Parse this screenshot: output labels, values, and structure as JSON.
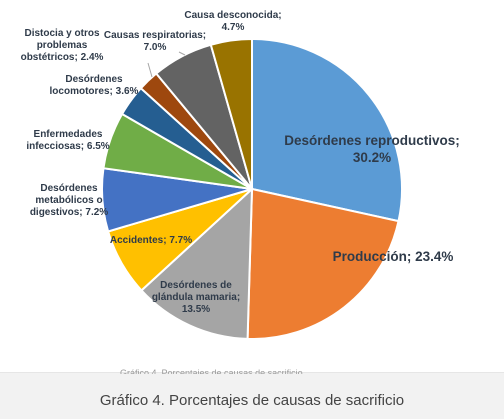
{
  "chart_data": {
    "type": "pie",
    "categories": [
      "Desórdenes reproductivos",
      "Producción",
      "Desórdenes de glándula mamaria",
      "Accidentes",
      "Desórdenes metabólicos o digestivos",
      "Enfermedades infecciosas",
      "Desórdenes locomotores",
      "Distocia y otros problemas obstétricos",
      "Causas respiratorias",
      "Causa desconocida"
    ],
    "values": [
      30.2,
      23.4,
      13.5,
      7.7,
      7.2,
      6.5,
      3.6,
      2.4,
      7.0,
      4.7
    ],
    "labels": [
      [
        "Desórdenes reproductivos;",
        "30.2%"
      ],
      [
        "Producción; 23.4%"
      ],
      [
        "Desórdenes de",
        "glándula mamaria;",
        "13.5%"
      ],
      [
        "Accidentes; 7.7%"
      ],
      [
        "Desórdenes",
        "metabólicos o",
        "digestivos; 7.2%"
      ],
      [
        "Enfermedades",
        "infecciosas; 6.5%"
      ],
      [
        "Desórdenes",
        "locomotores; 3.6%"
      ],
      [
        "Distocia y otros",
        "problemas",
        "obstétricos; 2.4%"
      ],
      [
        "Causas respiratorias;",
        "7.0%"
      ],
      [
        "Causa desconocida;",
        "4.7%"
      ]
    ],
    "colors": [
      "#5b9bd5",
      "#ed7d31",
      "#a5a5a5",
      "#ffc000",
      "#4472c4",
      "#70ad47",
      "#255e91",
      "#9e480e",
      "#636363",
      "#997300"
    ],
    "start": "top",
    "direction": "clockwise",
    "legend": "none"
  },
  "caption": "Gráfico 4. Porcentajes de causas de sacrificio",
  "partial_text": "Gráfico 4. Porcentajes de causas de sacrificio"
}
